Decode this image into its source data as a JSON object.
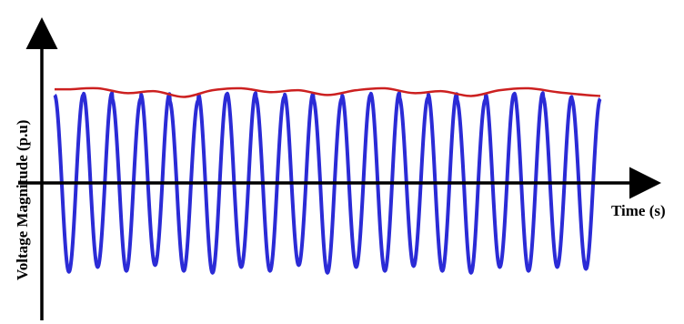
{
  "chart_data": {
    "type": "line",
    "title": "",
    "xlabel": "Time (s)",
    "ylabel": "Voltage Magnitude (p.u)",
    "x_ticks": [],
    "y_ticks": [],
    "grid": false,
    "cycles": 19,
    "series": [
      {
        "role": "waveform",
        "color": "#2b2bd6",
        "positive_peaks": [
          0.92,
          0.94,
          0.88,
          0.93,
          0.86,
          0.93,
          0.94,
          0.9,
          0.93,
          0.88,
          0.92,
          0.94,
          0.89,
          0.93,
          0.87,
          0.93,
          0.94,
          0.9,
          0.88
        ],
        "negative_peaks": [
          -0.93,
          -0.88,
          -0.92,
          -0.86,
          -0.92,
          -0.94,
          -0.88,
          -0.92,
          -0.86,
          -0.94,
          -0.88,
          -0.92,
          -0.87,
          -0.92,
          -0.94,
          -0.88,
          -0.92,
          -0.88,
          -0.9
        ]
      },
      {
        "role": "upper-envelope",
        "color": "#cc2020",
        "points": [
          [
            0.0,
            0.98
          ],
          [
            0.5,
            0.98
          ],
          [
            1.5,
            0.99
          ],
          [
            2.5,
            0.94
          ],
          [
            3.5,
            0.96
          ],
          [
            4.5,
            0.9
          ],
          [
            5.5,
            0.97
          ],
          [
            6.5,
            0.99
          ],
          [
            7.5,
            0.95
          ],
          [
            8.5,
            0.97
          ],
          [
            9.5,
            0.92
          ],
          [
            10.5,
            0.97
          ],
          [
            11.5,
            0.99
          ],
          [
            12.5,
            0.94
          ],
          [
            13.5,
            0.96
          ],
          [
            14.5,
            0.91
          ],
          [
            15.5,
            0.97
          ],
          [
            16.5,
            0.99
          ],
          [
            17.5,
            0.95
          ],
          [
            18.5,
            0.92
          ],
          [
            19.0,
            0.91
          ]
        ]
      }
    ]
  }
}
